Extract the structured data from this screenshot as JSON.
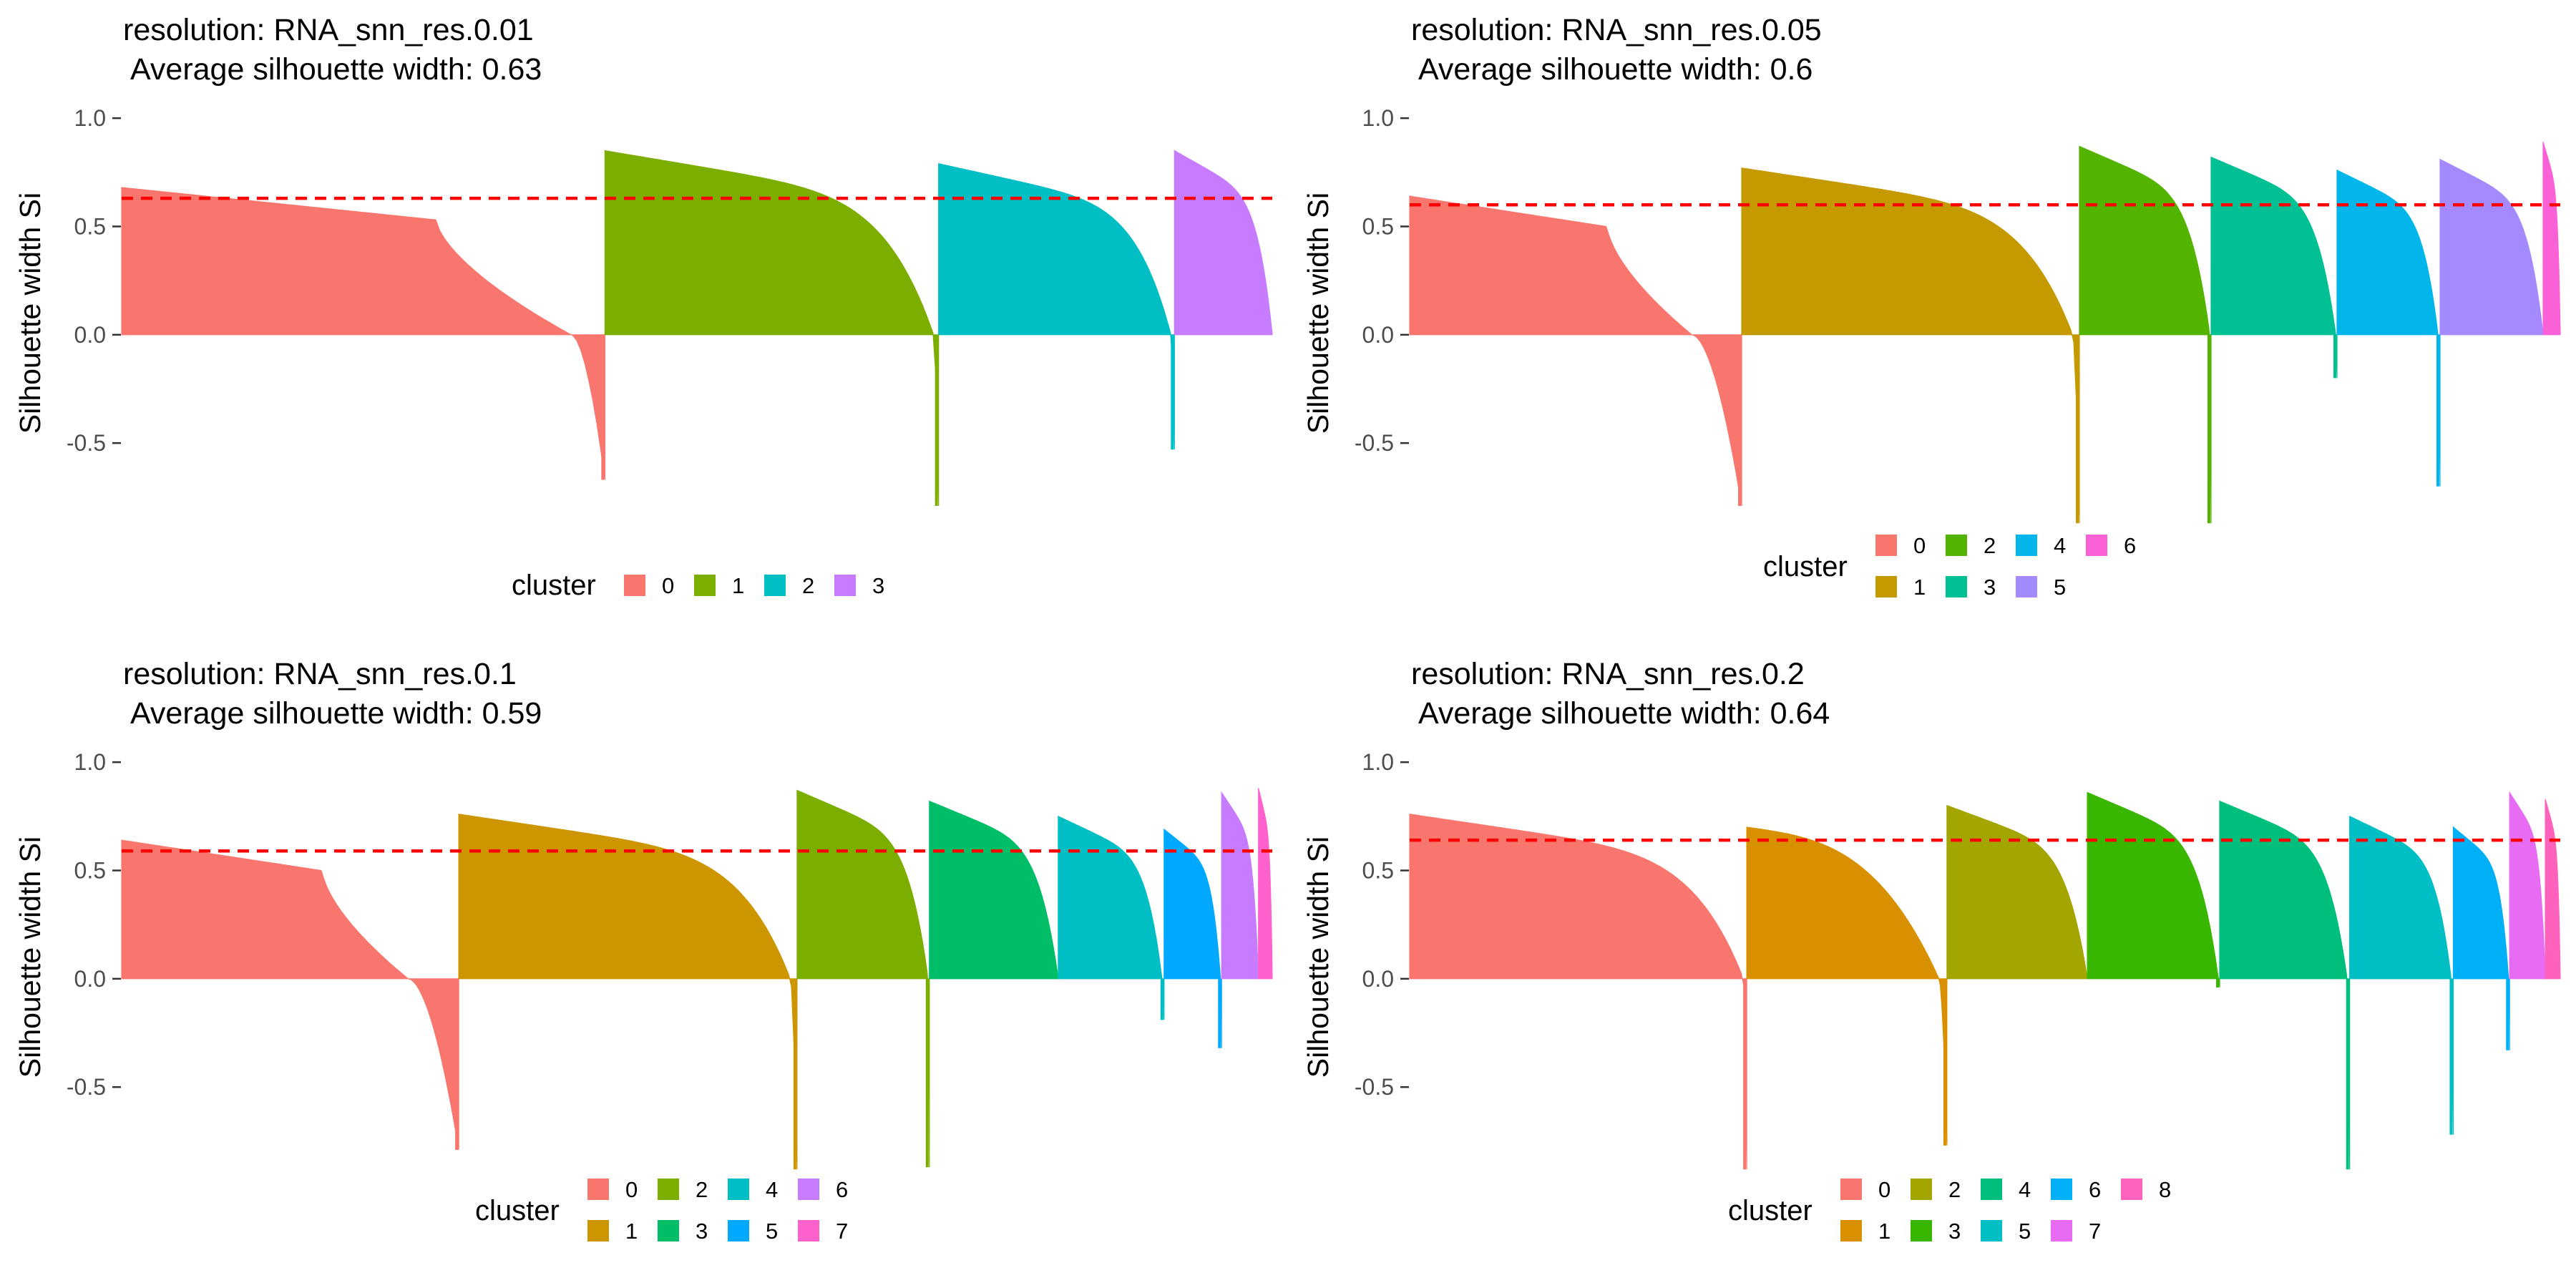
{
  "chart_data": [
    {
      "type": "area",
      "title": "resolution: RNA_snn_res.0.01",
      "subtitle": "Average silhouette width: 0.63",
      "ylabel": "Silhouette width Si",
      "xlabel": "",
      "ylim": [
        -0.8,
        1.05
      ],
      "yticks": [
        1.0,
        0.5,
        0.0,
        -0.5
      ],
      "ytick_labels": [
        "1.0",
        "0.5",
        "0.0",
        "-0.5"
      ],
      "average_line": 0.63,
      "legend_title": "cluster",
      "legend_position": "bottom",
      "legend_rows": 1,
      "grid": false,
      "series": [
        {
          "name": "0",
          "color": "#F8766D",
          "width": 0.42,
          "start": 0.68,
          "min": -0.67,
          "zero_at": 0.93,
          "profile": "wide"
        },
        {
          "name": "1",
          "color": "#7CAE00",
          "width": 0.29,
          "start": 0.85,
          "min": -0.79,
          "zero_at": 0.985,
          "profile": "plateau"
        },
        {
          "name": "2",
          "color": "#00BFC4",
          "width": 0.205,
          "start": 0.79,
          "min": -0.53,
          "zero_at": 0.985,
          "profile": "plateau"
        },
        {
          "name": "3",
          "color": "#C77CFF",
          "width": 0.085,
          "start": 0.85,
          "min": 0.72,
          "zero_at": 1.0,
          "profile": "plateau"
        }
      ]
    },
    {
      "type": "area",
      "title": "resolution: RNA_snn_res.0.05",
      "subtitle": "Average silhouette width: 0.6",
      "ylabel": "Silhouette width Si",
      "xlabel": "",
      "ylim": [
        -0.8,
        1.05
      ],
      "yticks": [
        1.0,
        0.5,
        0.0,
        -0.5
      ],
      "ytick_labels": [
        "1.0",
        "0.5",
        "0.0",
        "-0.5"
      ],
      "average_line": 0.6,
      "legend_title": "cluster",
      "legend_position": "bottom",
      "legend_rows": 2,
      "grid": false,
      "series": [
        {
          "name": "0",
          "color": "#F8766D",
          "width": 0.29,
          "start": 0.64,
          "min": -0.79,
          "zero_at": 0.85,
          "profile": "wide"
        },
        {
          "name": "1",
          "color": "#C49A00",
          "width": 0.295,
          "start": 0.77,
          "min": -0.87,
          "zero_at": 0.98,
          "profile": "plateau"
        },
        {
          "name": "2",
          "color": "#53B400",
          "width": 0.115,
          "start": 0.87,
          "min": -0.87,
          "zero_at": 0.99,
          "profile": "plateau"
        },
        {
          "name": "3",
          "color": "#00C094",
          "width": 0.11,
          "start": 0.82,
          "min": -0.2,
          "zero_at": 0.99,
          "profile": "plateau"
        },
        {
          "name": "4",
          "color": "#00B6EB",
          "width": 0.09,
          "start": 0.76,
          "min": -0.7,
          "zero_at": 0.98,
          "profile": "plateau"
        },
        {
          "name": "5",
          "color": "#A58AFF",
          "width": 0.09,
          "start": 0.81,
          "min": 0.69,
          "zero_at": 1.0,
          "profile": "plateau"
        },
        {
          "name": "6",
          "color": "#FB61D7",
          "width": 0.015,
          "start": 0.89,
          "min": 0.86,
          "zero_at": 1.0,
          "profile": "plateau"
        }
      ]
    },
    {
      "type": "area",
      "title": "resolution: RNA_snn_res.0.1",
      "subtitle": "Average silhouette width: 0.59",
      "ylabel": "Silhouette width Si",
      "xlabel": "",
      "ylim": [
        -0.8,
        1.05
      ],
      "yticks": [
        1.0,
        0.5,
        0.0,
        -0.5
      ],
      "ytick_labels": [
        "1.0",
        "0.5",
        "0.0",
        "-0.5"
      ],
      "average_line": 0.59,
      "legend_title": "cluster",
      "legend_position": "bottom",
      "legend_rows": 2,
      "grid": false,
      "series": [
        {
          "name": "0",
          "color": "#F8766D",
          "width": 0.293,
          "start": 0.64,
          "min": -0.79,
          "zero_at": 0.85,
          "profile": "wide"
        },
        {
          "name": "1",
          "color": "#CD9600",
          "width": 0.294,
          "start": 0.76,
          "min": -0.88,
          "zero_at": 0.98,
          "profile": "plateau"
        },
        {
          "name": "2",
          "color": "#7CAE00",
          "width": 0.115,
          "start": 0.87,
          "min": -0.87,
          "zero_at": 0.99,
          "profile": "plateau"
        },
        {
          "name": "3",
          "color": "#00BE67",
          "width": 0.112,
          "start": 0.82,
          "min": 0.56,
          "zero_at": 1.0,
          "profile": "plateau"
        },
        {
          "name": "4",
          "color": "#00BFC4",
          "width": 0.092,
          "start": 0.75,
          "min": -0.19,
          "zero_at": 0.98,
          "profile": "plateau"
        },
        {
          "name": "5",
          "color": "#00A9FF",
          "width": 0.05,
          "start": 0.69,
          "min": -0.32,
          "zero_at": 0.98,
          "profile": "plateau"
        },
        {
          "name": "6",
          "color": "#C77CFF",
          "width": 0.032,
          "start": 0.86,
          "min": 0.69,
          "zero_at": 1.0,
          "profile": "plateau"
        },
        {
          "name": "7",
          "color": "#FF61CC",
          "width": 0.012,
          "start": 0.88,
          "min": 0.85,
          "zero_at": 1.0,
          "profile": "plateau"
        }
      ]
    },
    {
      "type": "area",
      "title": "resolution: RNA_snn_res.0.2",
      "subtitle": "Average silhouette width: 0.64",
      "ylabel": "Silhouette width Si",
      "xlabel": "",
      "ylim": [
        -0.8,
        1.05
      ],
      "yticks": [
        1.0,
        0.5,
        0.0,
        -0.5
      ],
      "ytick_labels": [
        "1.0",
        "0.5",
        "0.0",
        "-0.5"
      ],
      "average_line": 0.64,
      "legend_title": "cluster",
      "legend_position": "bottom",
      "legend_rows": 2,
      "grid": false,
      "series": [
        {
          "name": "0",
          "color": "#F8766D",
          "width": 0.293,
          "start": 0.76,
          "min": -0.88,
          "zero_at": 0.99,
          "profile": "plateau"
        },
        {
          "name": "1",
          "color": "#D89000",
          "width": 0.174,
          "start": 0.7,
          "min": -0.77,
          "zero_at": 0.96,
          "profile": "late"
        },
        {
          "name": "2",
          "color": "#A3A500",
          "width": 0.122,
          "start": 0.8,
          "min": 0.57,
          "zero_at": 1.0,
          "profile": "plateau"
        },
        {
          "name": "3",
          "color": "#39B600",
          "width": 0.115,
          "start": 0.86,
          "min": -0.04,
          "zero_at": 0.99,
          "profile": "plateau"
        },
        {
          "name": "4",
          "color": "#00BF7D",
          "width": 0.113,
          "start": 0.82,
          "min": -0.88,
          "zero_at": 0.98,
          "profile": "plateau"
        },
        {
          "name": "5",
          "color": "#00BFC4",
          "width": 0.09,
          "start": 0.75,
          "min": -0.72,
          "zero_at": 0.98,
          "profile": "plateau"
        },
        {
          "name": "6",
          "color": "#00B0F6",
          "width": 0.049,
          "start": 0.7,
          "min": -0.33,
          "zero_at": 0.98,
          "profile": "plateau"
        },
        {
          "name": "7",
          "color": "#E76BF3",
          "width": 0.031,
          "start": 0.86,
          "min": 0.69,
          "zero_at": 1.0,
          "profile": "plateau"
        },
        {
          "name": "8",
          "color": "#FF62BC",
          "width": 0.013,
          "start": 0.83,
          "min": 0.8,
          "zero_at": 1.0,
          "profile": "plateau"
        }
      ]
    }
  ],
  "style": {
    "average_line_color": "#ff0000",
    "axis_text_color": "#4d4d4d"
  }
}
